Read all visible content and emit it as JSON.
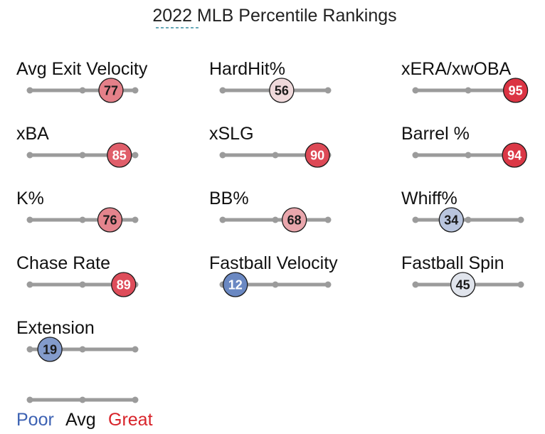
{
  "title": "2022 MLB Percentile Rankings",
  "chart_data": {
    "type": "scatter",
    "title": "2022 MLB Percentile Rankings",
    "x_range": [
      0,
      100
    ],
    "ticks": [
      "Poor",
      "Avg",
      "Great"
    ],
    "columns": 3,
    "metrics": [
      {
        "label": "Avg Exit Velocity",
        "value": 77
      },
      {
        "label": "HardHit%",
        "value": 56
      },
      {
        "label": "xERA/xwOBA",
        "value": 95
      },
      {
        "label": "xBA",
        "value": 85
      },
      {
        "label": "xSLG",
        "value": 90
      },
      {
        "label": "Barrel %",
        "value": 94
      },
      {
        "label": "K%",
        "value": 76
      },
      {
        "label": "BB%",
        "value": 68
      },
      {
        "label": "Whiff%",
        "value": 34
      },
      {
        "label": "Chase Rate",
        "value": 89
      },
      {
        "label": "Fastball Velocity",
        "value": 12
      },
      {
        "label": "Fastball Spin",
        "value": 45
      },
      {
        "label": "Extension",
        "value": 19
      }
    ]
  },
  "legend": {
    "poor": {
      "label": "Poor",
      "color": "#3d62b3"
    },
    "avg": {
      "label": "Avg",
      "color": "#111111"
    },
    "great": {
      "label": "Great",
      "color": "#d8232a"
    }
  },
  "colors": {
    "track": "#9b9b9b",
    "title_underline": "#6aa9b8"
  }
}
